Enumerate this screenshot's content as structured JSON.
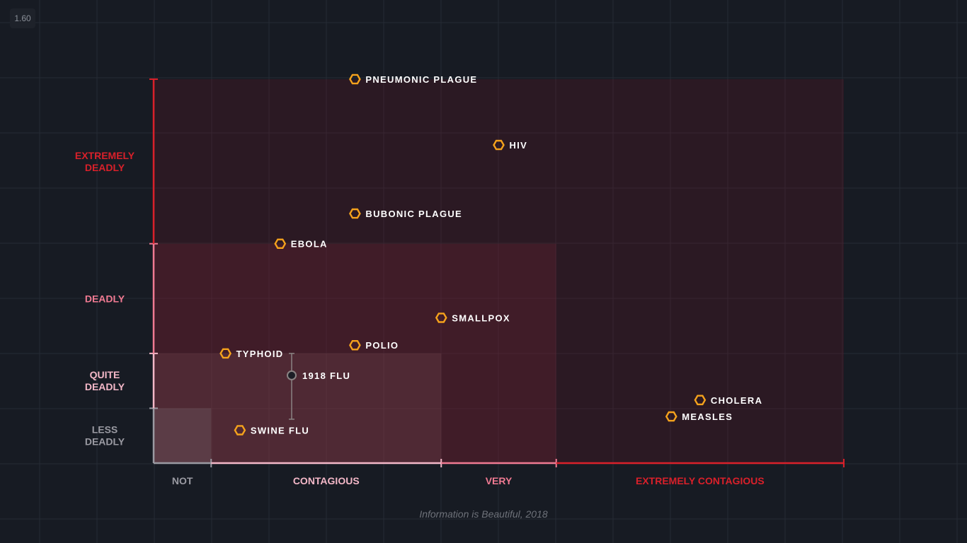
{
  "zoom_badge": "1.60",
  "credit": "Information is Beautiful, 2018",
  "colors": {
    "background": "#171b23",
    "marker": "#f5a21c",
    "marker_muted": "#8a8383",
    "axis_red": "#d9202a",
    "axis_pink": "#f07a92",
    "axis_grey": "#9a9aa2"
  },
  "chart_data": {
    "type": "scatter",
    "x_bands": [
      {
        "label": "NOT",
        "from": 0,
        "to": 1,
        "color": "#9a9aa2"
      },
      {
        "label": "CONTAGIOUS",
        "from": 1,
        "to": 5,
        "color": "#f4b8c8"
      },
      {
        "label": "VERY",
        "from": 5,
        "to": 7,
        "color": "#f07a92"
      },
      {
        "label": "EXTREMELY CONTAGIOUS",
        "from": 7,
        "to": 12,
        "color": "#d9202a"
      }
    ],
    "y_bands": [
      {
        "label": [
          "LESS",
          "DEADLY"
        ],
        "from": 0,
        "to": 1,
        "color": "#9a9aa2"
      },
      {
        "label": [
          "QUITE",
          "DEADLY"
        ],
        "from": 1,
        "to": 2,
        "color": "#f4b8c8"
      },
      {
        "label": [
          "DEADLY"
        ],
        "from": 2,
        "to": 4,
        "color": "#f07a92"
      },
      {
        "label": [
          "EXTREMELY",
          "DEADLY"
        ],
        "from": 4,
        "to": 7,
        "color": "#d9202a"
      }
    ],
    "xlim": [
      0,
      12
    ],
    "ylim": [
      0,
      7
    ],
    "points": [
      {
        "label": "PNEUMONIC PLAGUE",
        "x": 3.5,
        "y": 7.0
      },
      {
        "label": "HIV",
        "x": 6.0,
        "y": 5.8
      },
      {
        "label": "BUBONIC PLAGUE",
        "x": 3.5,
        "y": 4.55
      },
      {
        "label": "EBOLA",
        "x": 2.2,
        "y": 4.0
      },
      {
        "label": "SMALLPOX",
        "x": 5.0,
        "y": 2.65
      },
      {
        "label": "POLIO",
        "x": 3.5,
        "y": 2.15
      },
      {
        "label": "TYPHOID",
        "x": 1.25,
        "y": 2.0
      },
      {
        "label": "1918 FLU",
        "x": 2.4,
        "y": 1.6,
        "range": [
          0.8,
          2.0
        ],
        "muted": true
      },
      {
        "label": "CHOLERA",
        "x": 9.5,
        "y": 1.15
      },
      {
        "label": "MEASLES",
        "x": 9.0,
        "y": 0.85
      },
      {
        "label": "SWINE FLU",
        "x": 1.5,
        "y": 0.6
      }
    ]
  }
}
